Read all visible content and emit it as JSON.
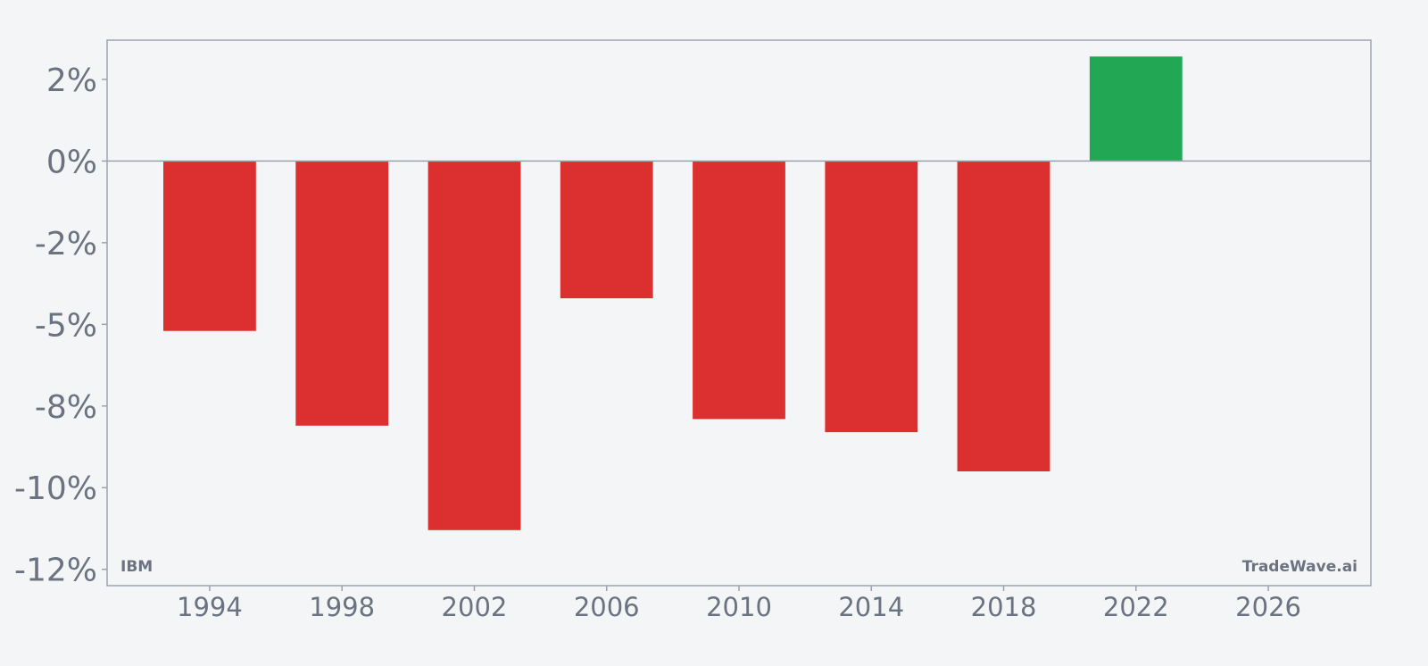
{
  "chart_data": {
    "type": "bar",
    "title": "",
    "xlabel": "",
    "ylabel": "",
    "x": [
      1994,
      1998,
      2002,
      2006,
      2010,
      2014,
      2018,
      2022
    ],
    "values": [
      -5.2,
      -8.1,
      -11.3,
      -4.2,
      -7.9,
      -8.3,
      -9.5,
      3.2
    ],
    "xlim": [
      1990.9,
      2029.1
    ],
    "ylim": [
      -13.0,
      3.7
    ],
    "x_ticks": [
      1994,
      1998,
      2002,
      2006,
      2010,
      2014,
      2018,
      2022,
      2026
    ],
    "x_tick_labels": [
      "1994",
      "1998",
      "2002",
      "2006",
      "2010",
      "2014",
      "2018",
      "2022",
      "2026"
    ],
    "y_ticks": [
      2.5,
      0,
      -2.5,
      -5,
      -7.5,
      -10,
      -12.5
    ],
    "y_tick_labels": [
      "2%",
      "0%",
      "-2%",
      "-5%",
      "-8%",
      "-10%",
      "-12%"
    ],
    "bar_width_years": 2.8,
    "grid": false,
    "legend": "none",
    "colors": {
      "negative": "#dc3030",
      "positive": "#22a855",
      "axis": "#9ca3af",
      "text": "#6b7280",
      "background": "#f4f5f7"
    }
  },
  "watermark_left": "IBM",
  "watermark_right": "TradeWave.ai"
}
